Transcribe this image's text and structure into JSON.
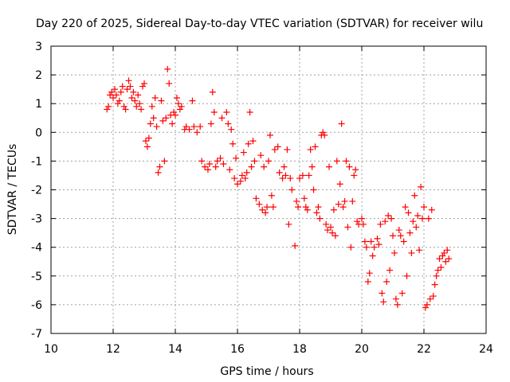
{
  "chart_data": {
    "type": "scatter",
    "title": "Day 220 of 2025, Sidereal Day-to-day VTEC variation (SDTVAR) for receiver wilu",
    "xlabel": "GPS time / hours",
    "ylabel": "SDTVAR / TECUs",
    "xlim": [
      10,
      24
    ],
    "ylim": [
      -7,
      3
    ],
    "xticks": [
      10,
      12,
      14,
      16,
      18,
      20,
      22,
      24
    ],
    "yticks": [
      -7,
      -6,
      -5,
      -4,
      -3,
      -2,
      -1,
      0,
      1,
      2,
      3
    ],
    "grid": true,
    "marker": "+",
    "series": [
      {
        "name": "SDTVAR",
        "color": "#ff0000",
        "points": [
          [
            11.8,
            0.8
          ],
          [
            11.85,
            0.9
          ],
          [
            11.9,
            1.3
          ],
          [
            11.95,
            1.4
          ],
          [
            12.0,
            1.2
          ],
          [
            12.05,
            1.5
          ],
          [
            12.1,
            1.3
          ],
          [
            12.15,
            1.0
          ],
          [
            12.2,
            1.1
          ],
          [
            12.25,
            1.4
          ],
          [
            12.3,
            1.6
          ],
          [
            12.35,
            0.9
          ],
          [
            12.4,
            0.8
          ],
          [
            12.45,
            1.5
          ],
          [
            12.5,
            1.8
          ],
          [
            12.55,
            1.6
          ],
          [
            12.6,
            1.2
          ],
          [
            12.65,
            1.4
          ],
          [
            12.7,
            1.1
          ],
          [
            12.75,
            0.9
          ],
          [
            12.8,
            1.3
          ],
          [
            12.85,
            1.0
          ],
          [
            12.9,
            0.8
          ],
          [
            12.95,
            1.6
          ],
          [
            13.0,
            1.7
          ],
          [
            13.05,
            -0.3
          ],
          [
            13.1,
            -0.5
          ],
          [
            13.15,
            -0.2
          ],
          [
            13.2,
            0.3
          ],
          [
            13.25,
            0.9
          ],
          [
            13.3,
            0.5
          ],
          [
            13.35,
            1.2
          ],
          [
            13.4,
            0.2
          ],
          [
            13.45,
            -1.4
          ],
          [
            13.5,
            -1.2
          ],
          [
            13.55,
            1.1
          ],
          [
            13.6,
            0.4
          ],
          [
            13.65,
            -1.0
          ],
          [
            13.7,
            0.5
          ],
          [
            13.75,
            2.2
          ],
          [
            13.8,
            1.7
          ],
          [
            13.85,
            0.6
          ],
          [
            13.9,
            0.3
          ],
          [
            13.95,
            0.7
          ],
          [
            14.0,
            0.6
          ],
          [
            14.05,
            1.2
          ],
          [
            14.1,
            1.0
          ],
          [
            14.15,
            0.8
          ],
          [
            14.2,
            0.9
          ],
          [
            14.3,
            0.1
          ],
          [
            14.35,
            0.2
          ],
          [
            14.45,
            0.1
          ],
          [
            14.55,
            1.1
          ],
          [
            14.6,
            0.2
          ],
          [
            14.7,
            0.0
          ],
          [
            14.8,
            0.2
          ],
          [
            14.85,
            -1.0
          ],
          [
            14.95,
            -1.2
          ],
          [
            15.05,
            -1.3
          ],
          [
            15.1,
            -1.1
          ],
          [
            15.15,
            0.3
          ],
          [
            15.2,
            1.4
          ],
          [
            15.25,
            0.7
          ],
          [
            15.3,
            -1.2
          ],
          [
            15.35,
            -1.0
          ],
          [
            15.45,
            -0.9
          ],
          [
            15.5,
            0.5
          ],
          [
            15.55,
            -1.1
          ],
          [
            15.65,
            0.7
          ],
          [
            15.7,
            0.3
          ],
          [
            15.75,
            -1.3
          ],
          [
            15.8,
            0.1
          ],
          [
            15.85,
            -0.4
          ],
          [
            15.9,
            -1.6
          ],
          [
            15.95,
            -0.9
          ],
          [
            16.0,
            -1.8
          ],
          [
            16.1,
            -1.7
          ],
          [
            16.15,
            -1.5
          ],
          [
            16.2,
            -0.7
          ],
          [
            16.25,
            -1.6
          ],
          [
            16.3,
            -1.4
          ],
          [
            16.35,
            -0.4
          ],
          [
            16.4,
            0.7
          ],
          [
            16.45,
            -1.2
          ],
          [
            16.5,
            -0.3
          ],
          [
            16.55,
            -1.0
          ],
          [
            16.6,
            -2.3
          ],
          [
            16.7,
            -2.5
          ],
          [
            16.75,
            -0.8
          ],
          [
            16.8,
            -2.7
          ],
          [
            16.85,
            -1.2
          ],
          [
            16.9,
            -2.8
          ],
          [
            16.95,
            -2.6
          ],
          [
            17.0,
            -1.0
          ],
          [
            17.05,
            -0.1
          ],
          [
            17.1,
            -2.2
          ],
          [
            17.15,
            -2.6
          ],
          [
            17.2,
            -0.6
          ],
          [
            17.3,
            -0.5
          ],
          [
            17.35,
            -1.4
          ],
          [
            17.45,
            -1.6
          ],
          [
            17.5,
            -1.2
          ],
          [
            17.55,
            -1.5
          ],
          [
            17.6,
            -0.6
          ],
          [
            17.65,
            -3.2
          ],
          [
            17.7,
            -1.6
          ],
          [
            17.75,
            -2.0
          ],
          [
            17.85,
            -3.95
          ],
          [
            17.9,
            -2.4
          ],
          [
            17.95,
            -2.6
          ],
          [
            18.0,
            -1.6
          ],
          [
            18.1,
            -1.5
          ],
          [
            18.15,
            -2.3
          ],
          [
            18.2,
            -2.6
          ],
          [
            18.25,
            -2.7
          ],
          [
            18.3,
            -1.5
          ],
          [
            18.35,
            -0.6
          ],
          [
            18.4,
            -1.2
          ],
          [
            18.45,
            -2.0
          ],
          [
            18.5,
            -0.5
          ],
          [
            18.55,
            -2.8
          ],
          [
            18.6,
            -2.6
          ],
          [
            18.65,
            -3.0
          ],
          [
            18.7,
            -0.1
          ],
          [
            18.75,
            0.0
          ],
          [
            18.8,
            -0.1
          ],
          [
            18.85,
            -3.2
          ],
          [
            18.9,
            -3.4
          ],
          [
            18.95,
            -1.2
          ],
          [
            19.0,
            -3.3
          ],
          [
            19.05,
            -3.5
          ],
          [
            19.1,
            -2.7
          ],
          [
            19.15,
            -3.6
          ],
          [
            19.2,
            -1.0
          ],
          [
            19.25,
            -2.5
          ],
          [
            19.3,
            -1.8
          ],
          [
            19.35,
            0.3
          ],
          [
            19.4,
            -2.6
          ],
          [
            19.45,
            -2.4
          ],
          [
            19.5,
            -1.0
          ],
          [
            19.55,
            -3.3
          ],
          [
            19.6,
            -1.2
          ],
          [
            19.65,
            -4.0
          ],
          [
            19.7,
            -2.4
          ],
          [
            19.75,
            -1.5
          ],
          [
            19.8,
            -1.3
          ],
          [
            19.85,
            -3.1
          ],
          [
            19.9,
            -3.2
          ],
          [
            20.0,
            -3.0
          ],
          [
            20.05,
            -3.2
          ],
          [
            20.1,
            -3.8
          ],
          [
            20.15,
            -4.0
          ],
          [
            20.2,
            -5.2
          ],
          [
            20.25,
            -4.9
          ],
          [
            20.3,
            -3.8
          ],
          [
            20.35,
            -4.3
          ],
          [
            20.4,
            -4.0
          ],
          [
            20.5,
            -3.7
          ],
          [
            20.55,
            -3.9
          ],
          [
            20.6,
            -3.2
          ],
          [
            20.65,
            -5.6
          ],
          [
            20.7,
            -5.9
          ],
          [
            20.75,
            -3.1
          ],
          [
            20.8,
            -5.2
          ],
          [
            20.85,
            -2.9
          ],
          [
            20.9,
            -4.8
          ],
          [
            20.95,
            -3.0
          ],
          [
            21.0,
            -3.6
          ],
          [
            21.05,
            -4.2
          ],
          [
            21.1,
            -5.8
          ],
          [
            21.15,
            -6.0
          ],
          [
            21.2,
            -3.4
          ],
          [
            21.25,
            -3.6
          ],
          [
            21.3,
            -5.6
          ],
          [
            21.35,
            -3.8
          ],
          [
            21.4,
            -2.6
          ],
          [
            21.45,
            -5.0
          ],
          [
            21.5,
            -2.8
          ],
          [
            21.55,
            -3.5
          ],
          [
            21.6,
            -4.2
          ],
          [
            21.65,
            -3.1
          ],
          [
            21.7,
            -2.2
          ],
          [
            21.75,
            -3.3
          ],
          [
            21.8,
            -2.9
          ],
          [
            21.85,
            -4.1
          ],
          [
            21.9,
            -1.9
          ],
          [
            21.95,
            -3.0
          ],
          [
            22.0,
            -2.6
          ],
          [
            22.05,
            -6.1
          ],
          [
            22.1,
            -6.0
          ],
          [
            22.15,
            -3.0
          ],
          [
            22.2,
            -5.8
          ],
          [
            22.25,
            -2.7
          ],
          [
            22.3,
            -5.7
          ],
          [
            22.35,
            -5.3
          ],
          [
            22.4,
            -5.0
          ],
          [
            22.45,
            -4.8
          ],
          [
            22.5,
            -4.4
          ],
          [
            22.55,
            -4.7
          ],
          [
            22.6,
            -4.3
          ],
          [
            22.65,
            -4.2
          ],
          [
            22.7,
            -4.5
          ],
          [
            22.75,
            -4.1
          ],
          [
            22.8,
            -4.4
          ]
        ]
      }
    ]
  }
}
